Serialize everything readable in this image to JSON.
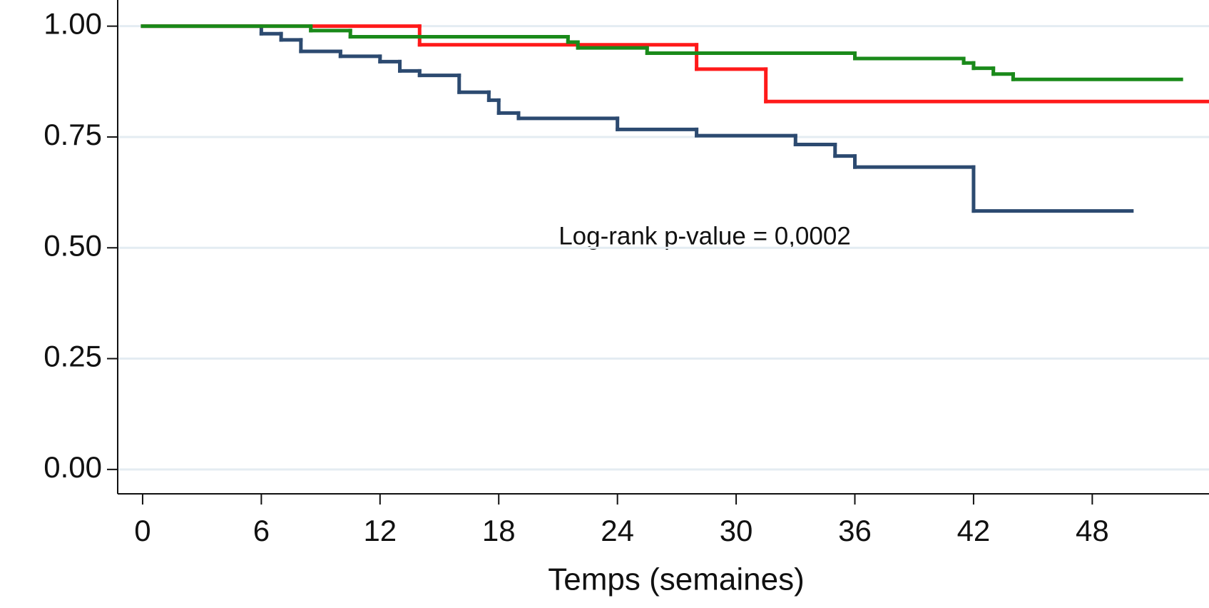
{
  "chart_data": {
    "type": "line",
    "step": "post",
    "x_label": "Temps (semaines)",
    "annotation": "Log-rank p-value = 0,0002",
    "xlim": [
      -1.26,
      53.9
    ],
    "ylim": [
      -0.055,
      1.059
    ],
    "xticks": [
      0,
      6,
      12,
      18,
      24,
      30,
      36,
      42,
      48
    ],
    "yticks": [
      {
        "value": 0,
        "label": "0.00"
      },
      {
        "value": 0.25,
        "label": "0.25"
      },
      {
        "value": 0.5,
        "label": "0.50"
      },
      {
        "value": 0.75,
        "label": "0.75"
      },
      {
        "value": 1,
        "label": "1.00"
      }
    ],
    "grid": true,
    "series": [
      {
        "color": "#2c4a70",
        "x": [
          0,
          6,
          7,
          8,
          10,
          12,
          13,
          14,
          16,
          17.5,
          18,
          19,
          24,
          28,
          33,
          35,
          36,
          42,
          50
        ],
        "values": [
          1.0,
          0.983,
          0.969,
          0.943,
          0.932,
          0.92,
          0.899,
          0.889,
          0.851,
          0.833,
          0.804,
          0.792,
          0.767,
          0.753,
          0.733,
          0.707,
          0.682,
          0.583,
          0.583
        ]
      },
      {
        "color": "#ff1a1a",
        "x": [
          0,
          14,
          28,
          31.5,
          54
        ],
        "values": [
          1.0,
          0.958,
          0.903,
          0.83,
          0.83
        ]
      },
      {
        "color": "#1a8a1a",
        "x": [
          0,
          8.5,
          10.5,
          21.5,
          22,
          25.5,
          36,
          41.5,
          42,
          43,
          44,
          52.5
        ],
        "values": [
          1.0,
          0.99,
          0.976,
          0.964,
          0.951,
          0.939,
          0.927,
          0.917,
          0.905,
          0.892,
          0.88,
          0.88
        ]
      }
    ]
  }
}
